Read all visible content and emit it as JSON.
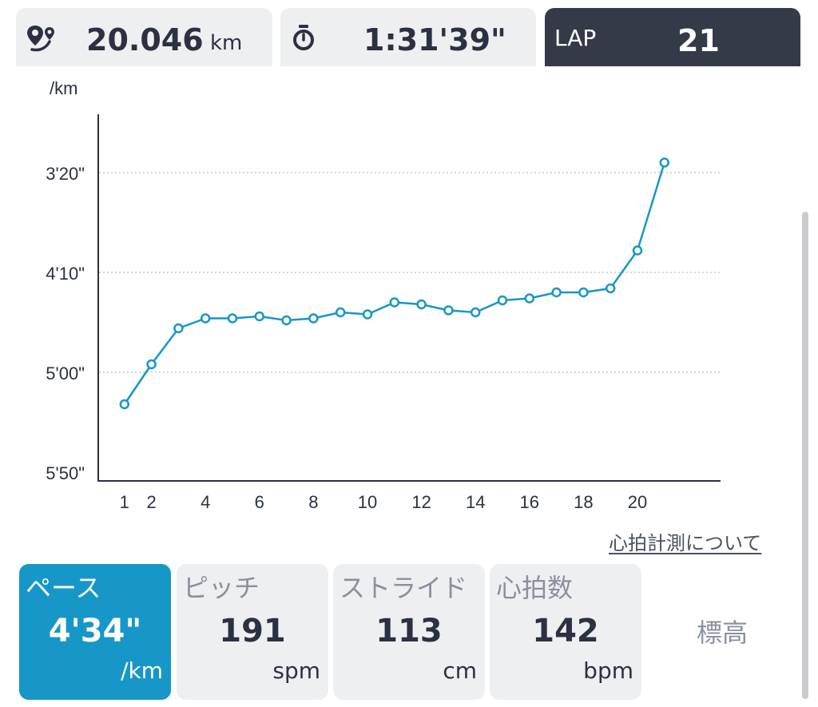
{
  "stats": {
    "distance": {
      "value": "20.046",
      "unit": "km",
      "icon": "route-pin-icon"
    },
    "time": {
      "value": "1:31'39\"",
      "icon": "stopwatch-icon"
    },
    "lap": {
      "label": "LAP",
      "value": "21"
    }
  },
  "chart_data": {
    "type": "line",
    "ylabel": "/km",
    "y_inverted": true,
    "ylim_seconds": [
      180,
      350
    ],
    "yticks": [
      {
        "label": "3'20\"",
        "seconds": 200
      },
      {
        "label": "4'10\"",
        "seconds": 250
      },
      {
        "label": "5'00\"",
        "seconds": 300
      },
      {
        "label": "5'50\"",
        "seconds": 350
      }
    ],
    "xticks": [
      1,
      2,
      4,
      6,
      8,
      10,
      12,
      14,
      16,
      18,
      20
    ],
    "grid": "horizontal-dotted",
    "series": [
      {
        "color": "#1697c8",
        "x": [
          1,
          2,
          3,
          4,
          5,
          6,
          7,
          8,
          9,
          10,
          11,
          12,
          13,
          14,
          15,
          16,
          17,
          18,
          19,
          20,
          21
        ],
        "y_seconds": [
          316,
          296,
          278,
          273,
          273,
          272,
          274,
          273,
          270,
          271,
          265,
          266,
          269,
          270,
          264,
          263,
          260,
          260,
          258,
          239,
          195
        ]
      }
    ]
  },
  "links": {
    "heart_rate_info": "心拍計測について"
  },
  "metrics": [
    {
      "label": "ペース",
      "value": "4'34\"",
      "unit": "/km",
      "active": true
    },
    {
      "label": "ピッチ",
      "value": "191",
      "unit": "spm"
    },
    {
      "label": "ストライド",
      "value": "113",
      "unit": "cm"
    },
    {
      "label": "心拍数",
      "value": "142",
      "unit": "bpm"
    }
  ],
  "elevation_tab": {
    "label": "標高"
  }
}
